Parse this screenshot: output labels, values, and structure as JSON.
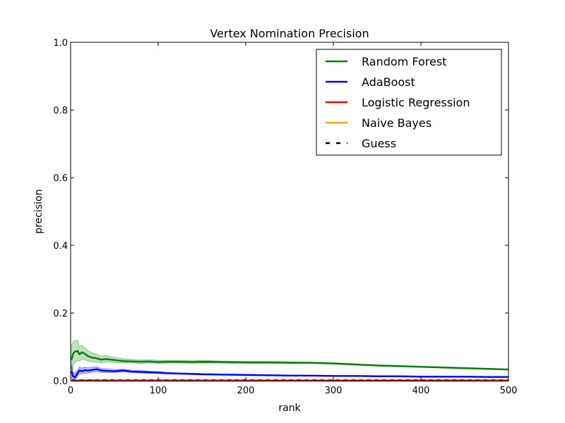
{
  "chart_data": {
    "type": "line",
    "title": "Vertex Nomination Precision",
    "xlabel": "rank",
    "ylabel": "precision",
    "xlim": [
      0,
      500
    ],
    "ylim": [
      0,
      1.0
    ],
    "x_ticks": [
      0,
      100,
      200,
      300,
      400,
      500
    ],
    "x_tick_labels": [
      "0",
      "100",
      "200",
      "300",
      "400",
      "500"
    ],
    "y_ticks": [
      0,
      0.2,
      0.4,
      0.6,
      0.8,
      1.0
    ],
    "y_tick_labels": [
      "0.0",
      "0.2",
      "0.4",
      "0.6",
      "0.8",
      "1.0"
    ],
    "grid": false,
    "legend_position": "top-right",
    "series": [
      {
        "name": "Random Forest",
        "color": "#008000",
        "style": "solid",
        "x": [
          1,
          3,
          5,
          8,
          10,
          13,
          16,
          20,
          25,
          30,
          35,
          40,
          50,
          60,
          70,
          80,
          90,
          100,
          110,
          125,
          140,
          150,
          175,
          200,
          225,
          250,
          275,
          300,
          325,
          350,
          375,
          400,
          425,
          450,
          475,
          500
        ],
        "y": [
          0.062,
          0.08,
          0.086,
          0.088,
          0.078,
          0.084,
          0.08,
          0.072,
          0.068,
          0.066,
          0.062,
          0.064,
          0.061,
          0.058,
          0.057,
          0.056,
          0.057,
          0.055,
          0.056,
          0.056,
          0.055,
          0.056,
          0.055,
          0.054,
          0.054,
          0.053,
          0.053,
          0.051,
          0.048,
          0.045,
          0.043,
          0.041,
          0.039,
          0.037,
          0.035,
          0.033
        ],
        "band_lower": [
          0.02,
          0.045,
          0.055,
          0.06,
          0.058,
          0.064,
          0.062,
          0.058,
          0.056,
          0.055,
          0.053,
          0.055,
          0.054,
          0.052,
          0.052,
          0.051,
          0.052,
          0.051,
          0.052,
          0.052,
          0.051,
          0.052,
          0.052,
          0.051,
          0.051,
          0.051,
          0.051,
          0.049,
          0.046,
          0.043,
          0.041,
          0.04,
          0.038,
          0.036,
          0.034,
          0.032
        ],
        "band_upper": [
          0.105,
          0.115,
          0.118,
          0.12,
          0.1,
          0.105,
          0.098,
          0.088,
          0.082,
          0.078,
          0.072,
          0.074,
          0.069,
          0.065,
          0.063,
          0.061,
          0.062,
          0.06,
          0.06,
          0.06,
          0.059,
          0.06,
          0.058,
          0.057,
          0.057,
          0.056,
          0.055,
          0.053,
          0.05,
          0.047,
          0.045,
          0.043,
          0.041,
          0.039,
          0.037,
          0.035
        ]
      },
      {
        "name": "AdaBoost",
        "color": "#0000ff",
        "style": "solid",
        "x": [
          1,
          3,
          5,
          8,
          10,
          13,
          16,
          20,
          25,
          30,
          35,
          40,
          50,
          60,
          70,
          80,
          90,
          100,
          110,
          125,
          140,
          150,
          175,
          200,
          225,
          250,
          275,
          300,
          325,
          350,
          375,
          400,
          425,
          450,
          475,
          500
        ],
        "y": [
          0.028,
          0.012,
          0.01,
          0.022,
          0.03,
          0.028,
          0.031,
          0.03,
          0.032,
          0.034,
          0.03,
          0.029,
          0.028,
          0.03,
          0.027,
          0.026,
          0.025,
          0.024,
          0.022,
          0.021,
          0.02,
          0.019,
          0.018,
          0.017,
          0.016,
          0.015,
          0.015,
          0.014,
          0.014,
          0.013,
          0.013,
          0.012,
          0.012,
          0.012,
          0.011,
          0.011
        ],
        "band_lower": [
          0.008,
          0.004,
          0.003,
          0.012,
          0.02,
          0.02,
          0.023,
          0.023,
          0.025,
          0.027,
          0.024,
          0.024,
          0.024,
          0.026,
          0.024,
          0.023,
          0.022,
          0.021,
          0.02,
          0.019,
          0.018,
          0.017,
          0.016,
          0.015,
          0.015,
          0.014,
          0.014,
          0.013,
          0.013,
          0.012,
          0.012,
          0.011,
          0.011,
          0.011,
          0.01,
          0.01
        ],
        "band_upper": [
          0.048,
          0.025,
          0.022,
          0.033,
          0.041,
          0.037,
          0.04,
          0.038,
          0.04,
          0.041,
          0.036,
          0.035,
          0.033,
          0.034,
          0.031,
          0.03,
          0.028,
          0.027,
          0.025,
          0.023,
          0.022,
          0.021,
          0.02,
          0.019,
          0.018,
          0.017,
          0.016,
          0.015,
          0.015,
          0.014,
          0.014,
          0.013,
          0.013,
          0.013,
          0.012,
          0.012
        ]
      },
      {
        "name": "Logistic Regression",
        "color": "#ff0000",
        "style": "solid",
        "x": [
          1,
          500
        ],
        "y": [
          0.0,
          0.0
        ]
      },
      {
        "name": "Naive Bayes",
        "color": "#ffa500",
        "style": "solid",
        "x": [
          1,
          500
        ],
        "y": [
          0.001,
          0.001
        ]
      },
      {
        "name": "Guess",
        "color": "#000000",
        "style": "dashed",
        "x": [
          1,
          500
        ],
        "y": [
          0.002,
          0.002
        ]
      }
    ]
  }
}
